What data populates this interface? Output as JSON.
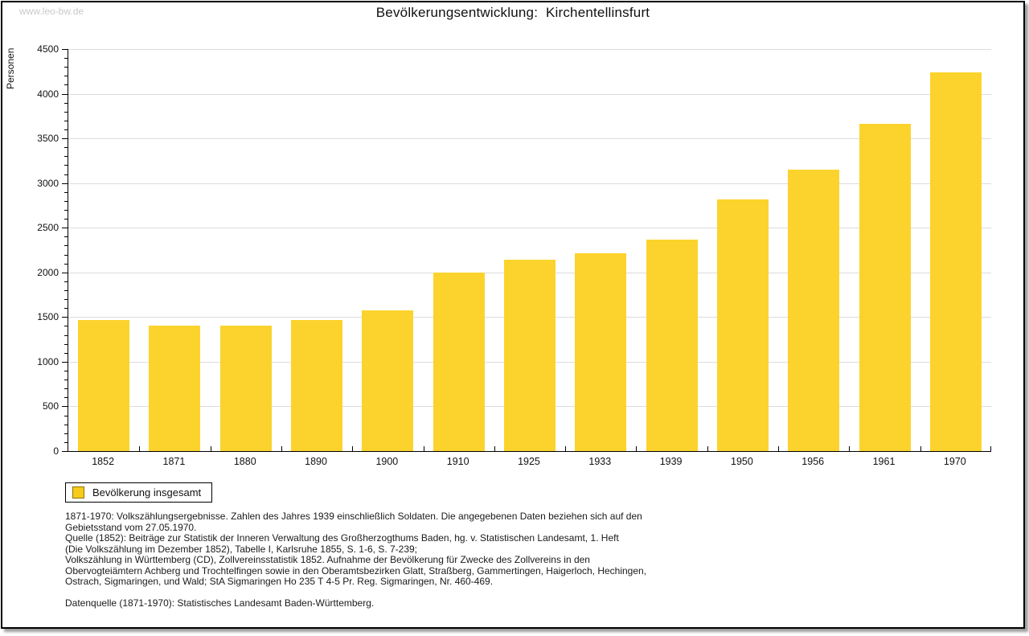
{
  "watermark": "www.leo-bw.de",
  "title": "Bevölkerungsentwicklung:  Kirchentellinsfurt",
  "legend": {
    "label": "Bevölkerung insgesamt"
  },
  "colors": {
    "bar_fill": "#fcd32d",
    "legend_swatch_fill": "#f6cb1e",
    "legend_swatch_border": "#8f7500",
    "grid": "#dcdcdc",
    "axis": "#000000",
    "watermark": "#c9c9c9"
  },
  "chart_data": {
    "type": "bar",
    "title": "Bevölkerungsentwicklung: Kirchentellinsfurt",
    "xlabel": "",
    "ylabel": "Personen",
    "ylim": [
      0,
      4500
    ],
    "y_major_step": 500,
    "y_minor_step": 100,
    "grid": true,
    "legend_position": "bottom-left",
    "categories": [
      "1852",
      "1871",
      "1880",
      "1890",
      "1900",
      "1910",
      "1925",
      "1933",
      "1939",
      "1950",
      "1956",
      "1961",
      "1970"
    ],
    "series": [
      {
        "name": "Bevölkerung insgesamt",
        "values": [
          1470,
          1405,
          1400,
          1470,
          1575,
          2000,
          2145,
          2215,
          2365,
          2820,
          3150,
          3660,
          4235
        ]
      }
    ]
  },
  "footnotes": [
    "1871-1970: Volkszählungsergebnisse. Zahlen des Jahres 1939 einschließlich Soldaten. Die angegebenen Daten beziehen sich auf den",
    "Gebietsstand vom 27.05.1970.",
    "Quelle (1852): Beiträge zur Statistik der Inneren Verwaltung des Großherzogthums Baden, hg. v. Statistischen Landesamt, 1. Heft",
    "(Die Volkszählung im Dezember 1852), Tabelle I, Karlsruhe 1855, S. 1-6, S. 7-239;",
    "Volkszählung in Württemberg (CD), Zollvereinsstatistik 1852. Aufnahme der Bevölkerung für Zwecke des Zollvereins in den",
    "Obervogteiämtern Achberg und Trochtelfingen sowie in den Oberamtsbezirken Glatt, Straßberg, Gammertingen, Haigerloch, Hechingen,",
    "Ostrach, Sigmaringen, und Wald; StA Sigmaringen Ho 235 T 4-5 Pr. Reg. Sigmaringen, Nr. 460-469.",
    "",
    "Datenquelle (1871-1970): Statistisches Landesamt Baden-Württemberg."
  ]
}
